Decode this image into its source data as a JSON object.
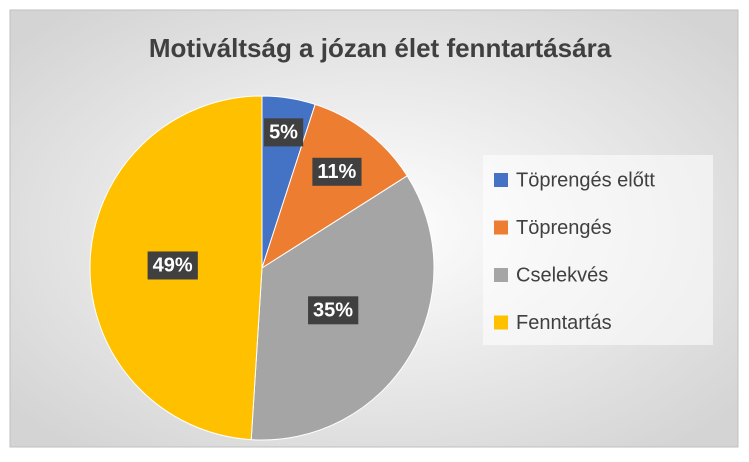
{
  "chart_data": {
    "type": "pie",
    "title": "Motiváltság a józan élet fenntartására",
    "categories": [
      "Töprengés előtt",
      "Töprengés",
      "Cselekvés",
      "Fenntartás"
    ],
    "values": [
      5,
      11,
      35,
      49
    ],
    "value_labels": [
      "5%",
      "11%",
      "35%",
      "49%"
    ],
    "colors": [
      "#4472c4",
      "#ed7d31",
      "#a5a5a5",
      "#ffc000"
    ],
    "legend": "right"
  }
}
